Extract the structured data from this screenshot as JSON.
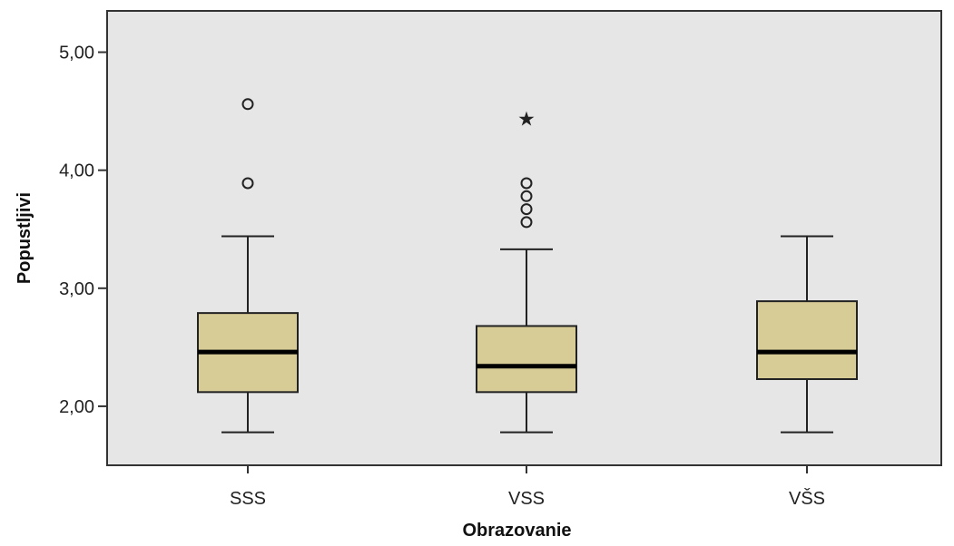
{
  "chart_data": {
    "type": "boxplot",
    "xlabel": "Obrazovanie",
    "ylabel": "Popustljivi",
    "ylim": [
      1.5,
      5.35
    ],
    "yticks": [
      {
        "value": 2.0,
        "label": "2,00"
      },
      {
        "value": 3.0,
        "label": "3,00"
      },
      {
        "value": 4.0,
        "label": "4,00"
      },
      {
        "value": 5.0,
        "label": "5,00"
      }
    ],
    "categories": [
      "SSS",
      "VSS",
      "VŠS"
    ],
    "boxes": [
      {
        "category": "SSS",
        "min": 1.78,
        "q1": 2.12,
        "median": 2.46,
        "q3": 2.79,
        "max": 3.44,
        "outliers": [
          {
            "value": 3.89,
            "marker": "circle"
          },
          {
            "value": 4.56,
            "marker": "circle"
          }
        ]
      },
      {
        "category": "VSS",
        "min": 1.78,
        "q1": 2.12,
        "median": 2.34,
        "q3": 2.68,
        "max": 3.33,
        "outliers": [
          {
            "value": 3.56,
            "marker": "circle"
          },
          {
            "value": 3.67,
            "marker": "circle"
          },
          {
            "value": 3.78,
            "marker": "circle"
          },
          {
            "value": 3.89,
            "marker": "circle"
          },
          {
            "value": 4.44,
            "marker": "star"
          }
        ]
      },
      {
        "category": "VŠS",
        "min": 1.78,
        "q1": 2.23,
        "median": 2.46,
        "q3": 2.89,
        "max": 3.44,
        "outliers": []
      }
    ],
    "grid": false,
    "colors": {
      "plot_background": "#e6e6e6",
      "box_fill": "#d7cb96",
      "box_stroke": "#222222",
      "median": "#000000"
    }
  }
}
